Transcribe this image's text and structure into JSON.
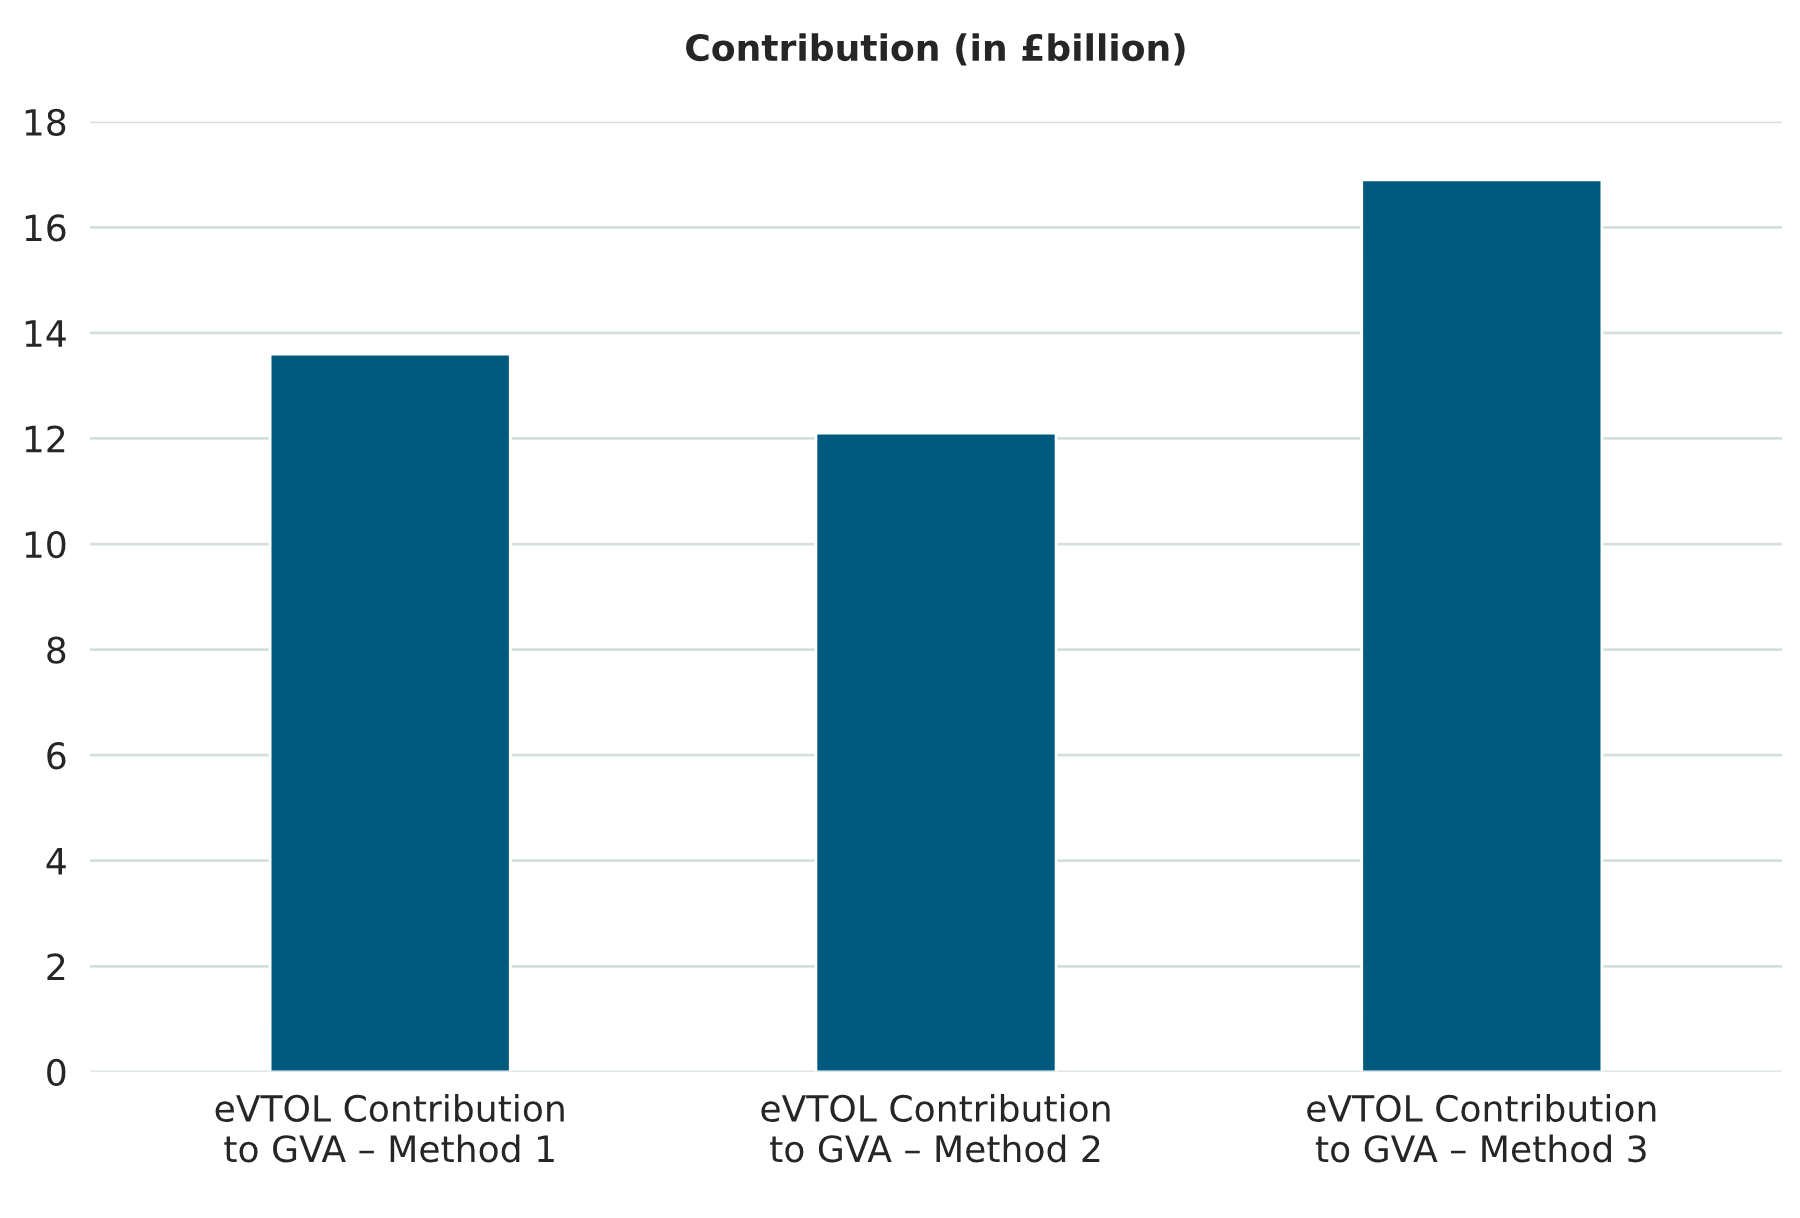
{
  "chart_data": {
    "type": "bar",
    "title": "Contribution (in £billion)",
    "categories": [
      "eVTOL Contribution\nto GVA – Method 1",
      "eVTOL Contribution\nto GVA – Method 2",
      "eVTOL Contribution\nto GVA – Method 3"
    ],
    "values": [
      13.6,
      12.1,
      16.9
    ],
    "color": "#005a7e",
    "ylim": [
      0,
      18
    ],
    "yticks": [
      0,
      2,
      4,
      6,
      8,
      10,
      12,
      14,
      16,
      18
    ],
    "grid": "y"
  }
}
